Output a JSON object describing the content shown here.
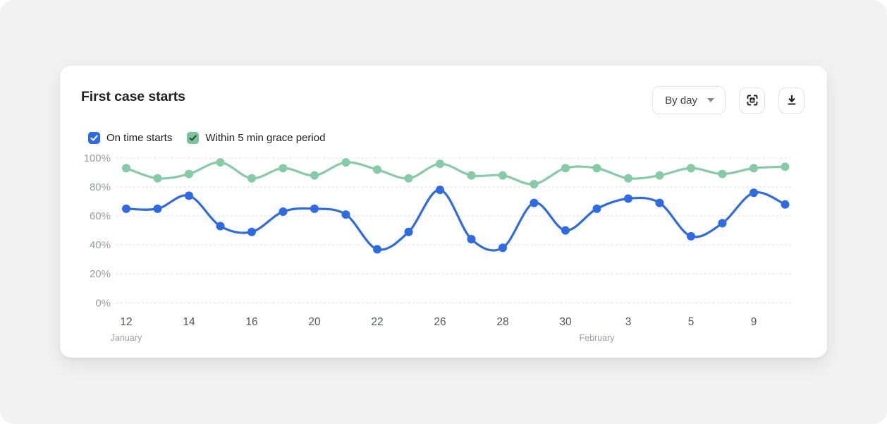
{
  "page": {
    "background_color": "#f2f2f3"
  },
  "card": {
    "title": "First case starts",
    "controls": {
      "range_selector": {
        "label": "By day",
        "icon": "chevron-down-icon"
      },
      "fullscreen_button": {
        "icon": "fullscreen-chart-icon"
      },
      "download_button": {
        "icon": "download-icon"
      }
    }
  },
  "legend": [
    {
      "label": "On time starts",
      "checked": true,
      "color": "#2d6ae4",
      "check_color": "#ffffff"
    },
    {
      "label": "Within 5 min grace period",
      "checked": true,
      "color": "#76c39c",
      "check_color": "#36453c"
    }
  ],
  "chart_data": {
    "type": "line",
    "title": "First case starts",
    "x_labels": [
      "12",
      "",
      "14",
      "",
      "16",
      "",
      "20",
      "",
      "22",
      "",
      "26",
      "",
      "28",
      "",
      "30",
      "",
      "3",
      "",
      "5",
      "",
      "9",
      ""
    ],
    "months": [
      {
        "label": "January",
        "index": 0
      },
      {
        "label": "February",
        "index": 15
      }
    ],
    "series": [
      {
        "name": "On time starts",
        "color": "#2d6ae4",
        "values": [
          65,
          65,
          74,
          53,
          49,
          63,
          65,
          61,
          37,
          49,
          78,
          44,
          38,
          69,
          50,
          65,
          72,
          69,
          46,
          55,
          76,
          68
        ]
      },
      {
        "name": "Within 5 min grace period",
        "color": "#85cba6",
        "values": [
          93,
          86,
          89,
          97,
          86,
          93,
          88,
          97,
          92,
          86,
          96,
          88,
          88,
          82,
          93,
          93,
          86,
          88,
          93,
          89,
          93,
          94
        ]
      }
    ],
    "y_ticks": [
      {
        "label": "100%",
        "value": 100
      },
      {
        "label": "80%",
        "value": 80
      },
      {
        "label": "60%",
        "value": 60
      },
      {
        "label": "40%",
        "value": 40
      },
      {
        "label": "20%",
        "value": 20
      },
      {
        "label": "0%",
        "value": 0
      }
    ],
    "ylim": [
      0,
      100
    ],
    "grid": "horizontal-dashed",
    "legend_position": "top-left"
  }
}
